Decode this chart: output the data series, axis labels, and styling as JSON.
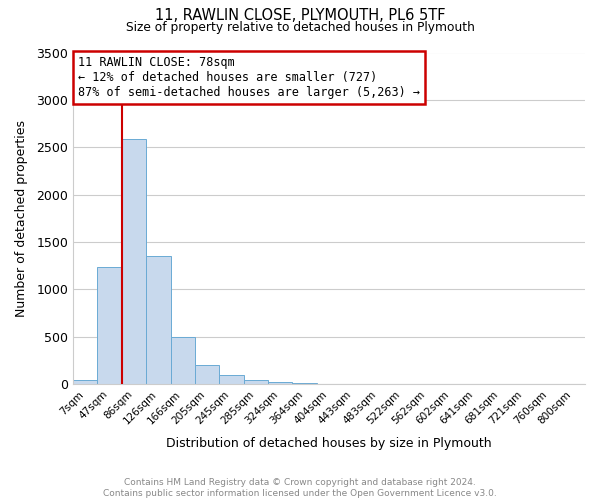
{
  "title": "11, RAWLIN CLOSE, PLYMOUTH, PL6 5TF",
  "subtitle": "Size of property relative to detached houses in Plymouth",
  "xlabel": "Distribution of detached houses by size in Plymouth",
  "ylabel": "Number of detached properties",
  "categories": [
    "7sqm",
    "47sqm",
    "86sqm",
    "126sqm",
    "166sqm",
    "205sqm",
    "245sqm",
    "285sqm",
    "324sqm",
    "364sqm",
    "404sqm",
    "443sqm",
    "483sqm",
    "522sqm",
    "562sqm",
    "602sqm",
    "641sqm",
    "681sqm",
    "721sqm",
    "760sqm",
    "800sqm"
  ],
  "values": [
    40,
    1240,
    2590,
    1350,
    500,
    200,
    100,
    40,
    25,
    10,
    5,
    3,
    3,
    0,
    0,
    0,
    0,
    0,
    0,
    0,
    0
  ],
  "bar_color": "#c8d9ed",
  "bar_edge_color": "#6aaad4",
  "property_line_color": "#cc0000",
  "annotation_title": "11 RAWLIN CLOSE: 78sqm",
  "annotation_line1": "← 12% of detached houses are smaller (727)",
  "annotation_line2": "87% of semi-detached houses are larger (5,263) →",
  "annotation_box_color": "#ffffff",
  "annotation_box_edge_color": "#cc0000",
  "ylim": [
    0,
    3500
  ],
  "yticks": [
    0,
    500,
    1000,
    1500,
    2000,
    2500,
    3000,
    3500
  ],
  "footer_line1": "Contains HM Land Registry data © Crown copyright and database right 2024.",
  "footer_line2": "Contains public sector information licensed under the Open Government Licence v3.0.",
  "bg_color": "#ffffff",
  "grid_color": "#cccccc"
}
